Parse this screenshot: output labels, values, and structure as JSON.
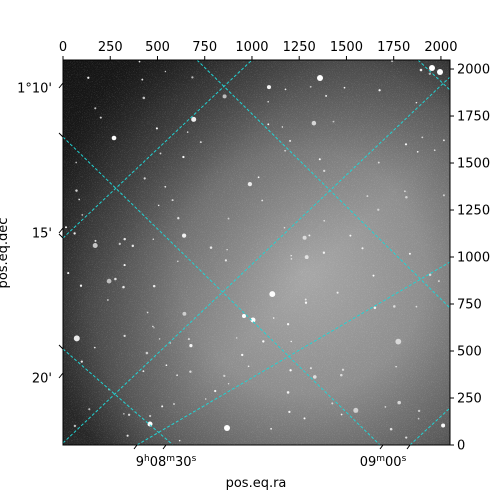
{
  "chart_data": {
    "type": "image",
    "title": "",
    "image_description": "grayscale astronomical sky image with star field and cyan dashed celestial coordinate grid overlay",
    "pixel_axes": {
      "x": {
        "lim": [
          0,
          2048
        ],
        "ticks": [
          0,
          250,
          500,
          750,
          1000,
          1250,
          1500,
          1750,
          2000
        ],
        "position": "top"
      },
      "y": {
        "lim": [
          0,
          2048
        ],
        "ticks": [
          0,
          250,
          500,
          750,
          1000,
          1250,
          1500,
          1750,
          2000
        ],
        "position": "right"
      }
    },
    "world_axes": {
      "xlabel": "pos.eq.ra",
      "ylabel": "pos.eq.dec",
      "ra_ticks": [
        {
          "label_main": "9",
          "unit1": "h",
          "mid": "08",
          "unit2": "m",
          "sec": "30",
          "unit3": "s"
        },
        {
          "label_main": "09",
          "unit1": "m",
          "mid": "00",
          "unit2": "s",
          "sec": "",
          "unit3": ""
        }
      ],
      "dec_ticks": [
        "1°10'",
        "15'",
        "20'"
      ]
    },
    "grid": {
      "color": "#22d3d3",
      "style": "dashed"
    },
    "colors": {
      "image_dark": "#1c1c1c",
      "image_light": "#a8a8a8",
      "grid": "#22d3d3"
    }
  }
}
